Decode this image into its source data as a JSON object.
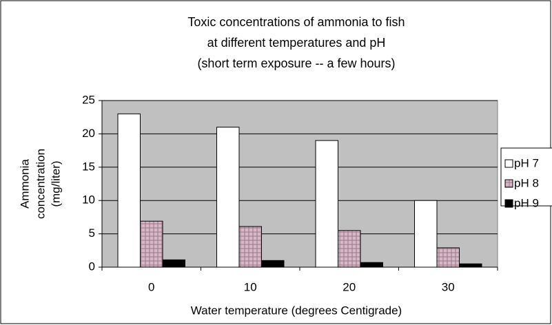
{
  "chart_data": {
    "type": "bar",
    "title": [
      "Toxic concentrations of ammonia to fish",
      "at different temperatures and pH",
      "(short term exposure -- a few hours)"
    ],
    "x_label": "Water temperature (degrees Centigrade)",
    "y_label": [
      "Ammonia",
      "concentration",
      "(mg/liter)"
    ],
    "categories": [
      "0",
      "10",
      "20",
      "30"
    ],
    "series": [
      {
        "name": "pH 7",
        "color": "#ffffff",
        "values": [
          23,
          21,
          19,
          10
        ]
      },
      {
        "name": "pH 8",
        "color": "#d8b8c8",
        "values": [
          6.9,
          6.1,
          5.5,
          2.9
        ]
      },
      {
        "name": "pH 9",
        "color": "#000000",
        "values": [
          1.1,
          1.0,
          0.7,
          0.5
        ]
      }
    ],
    "ylim": [
      0,
      25
    ],
    "yticks": [
      0,
      5,
      10,
      15,
      20,
      25
    ],
    "grid": true,
    "legend": "right"
  }
}
